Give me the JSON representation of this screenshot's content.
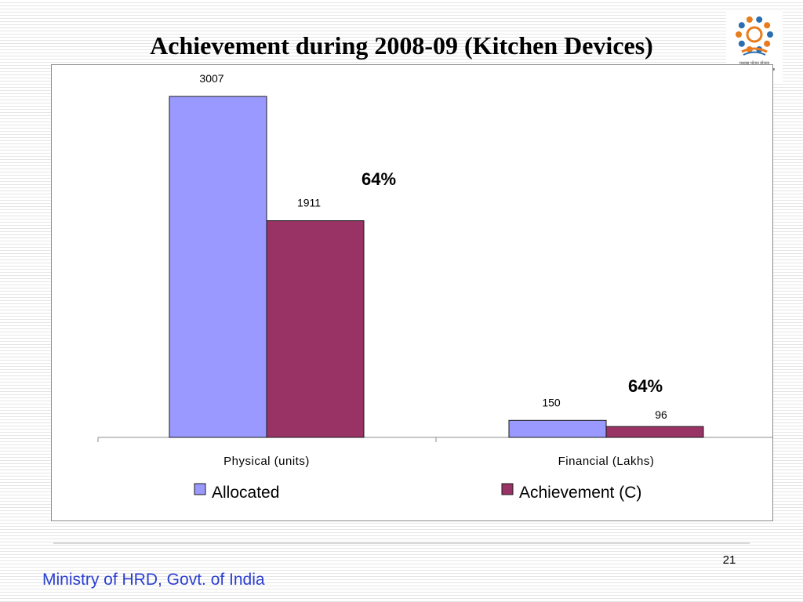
{
  "slide": {
    "title": "Achievement during 2008-09 (Kitchen Devices)",
    "page_number": "21",
    "footer": "Ministry of HRD, Govt. of India",
    "logo_text": "मध्याह्न भोजन योजना",
    "logo_subtext": "Mid Day Meal Scheme",
    "logo_icon": "mid-day-meal-scheme-logo"
  },
  "chart_data": {
    "type": "bar",
    "categories": [
      "Physical (units)",
      "Financial (Lakhs)"
    ],
    "series": [
      {
        "name": "Allocated",
        "values": [
          3007,
          150
        ],
        "color": "#9999ff"
      },
      {
        "name": "Achievement (C)",
        "values": [
          1911,
          96
        ],
        "color": "#993366"
      }
    ],
    "data_labels": [
      [
        "3007",
        "150"
      ],
      [
        "1911",
        "96"
      ]
    ],
    "annotations": [
      "64%",
      "64%"
    ],
    "ylim": [
      0,
      3007
    ],
    "grid": false,
    "legend": "bottom"
  }
}
